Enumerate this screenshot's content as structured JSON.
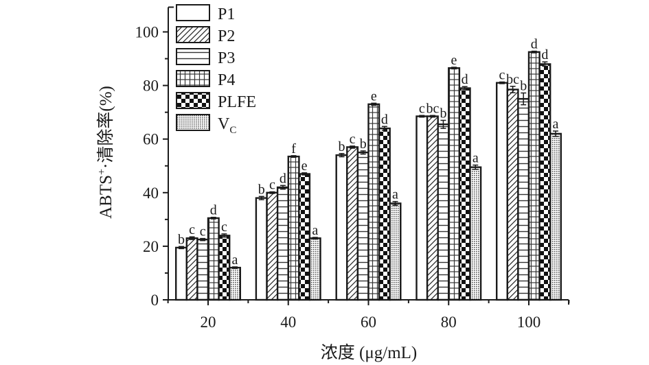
{
  "chart_data": {
    "type": "bar",
    "title": "",
    "xlabel": "浓度 (μg/mL)",
    "ylabel": "ABTS⁺·清除率(%)",
    "ylabel_parts": {
      "main": "ABTS",
      "sup": "+",
      "rest": "·清除率(%)"
    },
    "ylim": [
      0,
      110
    ],
    "yticks": [
      0,
      20,
      40,
      60,
      80,
      100
    ],
    "ytick_labels": [
      "0",
      "20",
      "40",
      "60",
      "80",
      "100"
    ],
    "grid": false,
    "legend_position": "top-left",
    "categories": [
      "20",
      "40",
      "60",
      "80",
      "100"
    ],
    "series": [
      {
        "name": "P1",
        "pattern": "empty",
        "values": [
          19.5,
          38,
          54,
          68.5,
          81
        ],
        "errors": [
          0.4,
          0.6,
          0.6,
          0.3,
          0.3
        ],
        "letters": [
          "b",
          "b",
          "b",
          "c",
          "c"
        ]
      },
      {
        "name": "P2",
        "pattern": "diagonal",
        "values": [
          23,
          40,
          57,
          68.5,
          78.5
        ],
        "errors": [
          0.5,
          0.3,
          0.4,
          0.3,
          1.2
        ],
        "letters": [
          "c",
          "c",
          "c",
          "bc",
          "bc"
        ]
      },
      {
        "name": "P3",
        "pattern": "horizontal",
        "values": [
          22.5,
          42,
          55,
          65.5,
          75
        ],
        "errors": [
          0.4,
          0.7,
          0.6,
          1.5,
          2.2
        ],
        "letters": [
          "c",
          "d",
          "b",
          "b",
          "b"
        ]
      },
      {
        "name": "P4",
        "pattern": "grid",
        "values": [
          30.5,
          53.5,
          73,
          86.5,
          92.5
        ],
        "errors": [
          0.3,
          0.3,
          0.4,
          0.3,
          0.3
        ],
        "letters": [
          "d",
          "f",
          "e",
          "e",
          "d"
        ]
      },
      {
        "name": "PLFE",
        "pattern": "checker",
        "values": [
          24,
          47,
          64,
          79,
          88
        ],
        "errors": [
          0.6,
          0.4,
          0.7,
          0.6,
          0.8
        ],
        "letters": [
          "c",
          "e",
          "d",
          "d",
          "d"
        ]
      },
      {
        "name": "VC",
        "legend_main": "V",
        "legend_sub": "C",
        "pattern": "dots",
        "values": [
          12,
          23,
          36,
          49.5,
          62
        ],
        "errors": [
          0.3,
          0.3,
          0.7,
          0.8,
          1.0
        ],
        "letters": [
          "a",
          "a",
          "a",
          "a",
          "a"
        ]
      }
    ]
  }
}
